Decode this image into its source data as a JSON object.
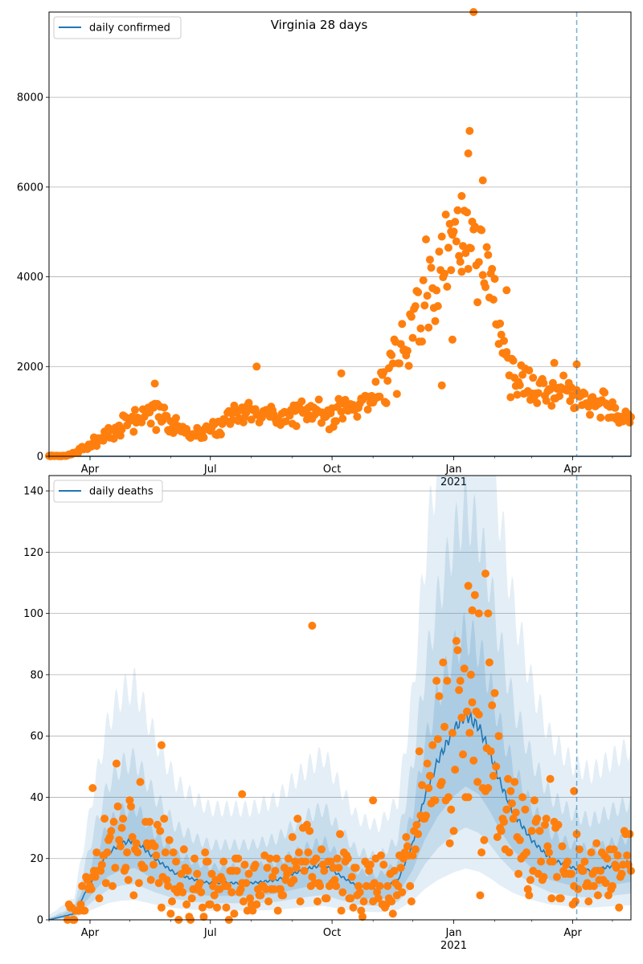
{
  "figure_title": "Virginia 28 days",
  "colors": {
    "model_line": "#1f77b4",
    "observed_points": "#ff7f0e",
    "band": "#1f77b4",
    "grid": "#b0b0b0",
    "vline": "#1f77b4"
  },
  "chart_data": [
    {
      "type": "scatter",
      "title": "Virginia 28 days",
      "legend": {
        "label": "daily confirmed",
        "placement": "top-left"
      },
      "xlim": [
        "2020-03-01",
        "2021-05-15"
      ],
      "ylim": [
        0,
        9900
      ],
      "yticks": [
        0,
        2000,
        4000,
        6000,
        8000
      ],
      "xticks": [
        {
          "date": "2020-04-01",
          "label": "Apr"
        },
        {
          "date": "2020-07-01",
          "label": "Jul"
        },
        {
          "date": "2020-10-01",
          "label": "Oct"
        },
        {
          "date": "2021-01-01",
          "label": "Jan",
          "sublabel": "2021"
        },
        {
          "date": "2021-04-01",
          "label": "Apr"
        }
      ],
      "grid": "y",
      "vline_date": "2021-04-04",
      "model_flat_value": 0,
      "observed_anchors": [
        [
          "2020-03-01",
          0
        ],
        [
          "2020-03-15",
          10
        ],
        [
          "2020-03-25",
          150
        ],
        [
          "2020-04-05",
          350
        ],
        [
          "2020-04-20",
          600
        ],
        [
          "2020-05-01",
          800
        ],
        [
          "2020-05-20",
          1000
        ],
        [
          "2020-06-01",
          750
        ],
        [
          "2020-06-15",
          500
        ],
        [
          "2020-07-01",
          550
        ],
        [
          "2020-07-15",
          900
        ],
        [
          "2020-08-01",
          1000
        ],
        [
          "2020-08-20",
          900
        ],
        [
          "2020-09-10",
          1000
        ],
        [
          "2020-10-01",
          900
        ],
        [
          "2020-10-20",
          1150
        ],
        [
          "2020-11-05",
          1400
        ],
        [
          "2020-11-20",
          2200
        ],
        [
          "2020-12-05",
          3200
        ],
        [
          "2020-12-20",
          3900
        ],
        [
          "2021-01-01",
          4700
        ],
        [
          "2021-01-12",
          5000
        ],
        [
          "2021-01-20",
          4700
        ],
        [
          "2021-02-01",
          3300
        ],
        [
          "2021-02-15",
          2000
        ],
        [
          "2021-03-01",
          1500
        ],
        [
          "2021-03-20",
          1500
        ],
        [
          "2021-04-01",
          1500
        ],
        [
          "2021-04-20",
          1200
        ],
        [
          "2021-05-15",
          800
        ]
      ],
      "highlighted_points": [
        [
          "2021-01-16",
          9900
        ],
        [
          "2021-01-13",
          7250
        ],
        [
          "2021-01-12",
          6750
        ],
        [
          "2021-01-23",
          6150
        ],
        [
          "2021-01-07",
          5800
        ],
        [
          "2020-12-30",
          4150
        ],
        [
          "2020-12-23",
          1580
        ],
        [
          "2020-12-31",
          2600
        ],
        [
          "2020-08-05",
          2000
        ],
        [
          "2020-10-08",
          1850
        ],
        [
          "2020-05-20",
          1620
        ],
        [
          "2021-04-04",
          2050
        ],
        [
          "2021-03-18",
          2080
        ],
        [
          "2021-02-10",
          3700
        ]
      ]
    },
    {
      "type": "line",
      "title": "",
      "legend": {
        "label": "daily deaths",
        "placement": "top-left"
      },
      "xlim": [
        "2020-03-01",
        "2021-05-15"
      ],
      "ylim": [
        0,
        145
      ],
      "yticks": [
        0,
        20,
        40,
        60,
        80,
        100,
        120,
        140
      ],
      "xticks": [
        {
          "date": "2020-04-01",
          "label": "Apr"
        },
        {
          "date": "2020-07-01",
          "label": "Jul"
        },
        {
          "date": "2020-10-01",
          "label": "Oct"
        },
        {
          "date": "2021-01-01",
          "label": "Jan",
          "sublabel": "2021"
        },
        {
          "date": "2021-04-01",
          "label": "Apr"
        }
      ],
      "grid": "y",
      "vline_date": "2021-04-04",
      "model_anchors": [
        [
          "2020-03-01",
          0
        ],
        [
          "2020-03-20",
          2
        ],
        [
          "2020-04-05",
          15
        ],
        [
          "2020-04-15",
          22
        ],
        [
          "2020-04-25",
          25
        ],
        [
          "2020-05-05",
          26
        ],
        [
          "2020-05-20",
          20
        ],
        [
          "2020-06-05",
          15
        ],
        [
          "2020-06-20",
          13
        ],
        [
          "2020-07-01",
          12
        ],
        [
          "2020-08-01",
          12
        ],
        [
          "2020-08-20",
          13
        ],
        [
          "2020-09-01",
          15
        ],
        [
          "2020-09-15",
          17
        ],
        [
          "2020-09-25",
          18
        ],
        [
          "2020-10-05",
          15
        ],
        [
          "2020-10-20",
          11
        ],
        [
          "2020-11-05",
          10
        ],
        [
          "2020-11-20",
          13
        ],
        [
          "2020-12-01",
          25
        ],
        [
          "2020-12-10",
          40
        ],
        [
          "2020-12-20",
          52
        ],
        [
          "2021-01-01",
          62
        ],
        [
          "2021-01-10",
          67
        ],
        [
          "2021-01-20",
          63
        ],
        [
          "2021-01-28",
          55
        ],
        [
          "2021-02-05",
          45
        ],
        [
          "2021-02-15",
          35
        ],
        [
          "2021-03-01",
          26
        ],
        [
          "2021-03-15",
          20
        ],
        [
          "2021-04-01",
          17
        ],
        [
          "2021-04-15",
          16
        ],
        [
          "2021-05-15",
          19
        ]
      ],
      "highlighted_points": [
        [
          "2020-09-16",
          96
        ],
        [
          "2021-01-25",
          113
        ],
        [
          "2021-01-12",
          109
        ],
        [
          "2021-01-15",
          101
        ],
        [
          "2021-01-20",
          100
        ],
        [
          "2021-01-27",
          100
        ],
        [
          "2020-04-03",
          43
        ],
        [
          "2020-05-25",
          57
        ],
        [
          "2020-07-25",
          41
        ],
        [
          "2021-03-15",
          46
        ],
        [
          "2021-04-02",
          42
        ],
        [
          "2020-11-01",
          39
        ]
      ]
    }
  ]
}
